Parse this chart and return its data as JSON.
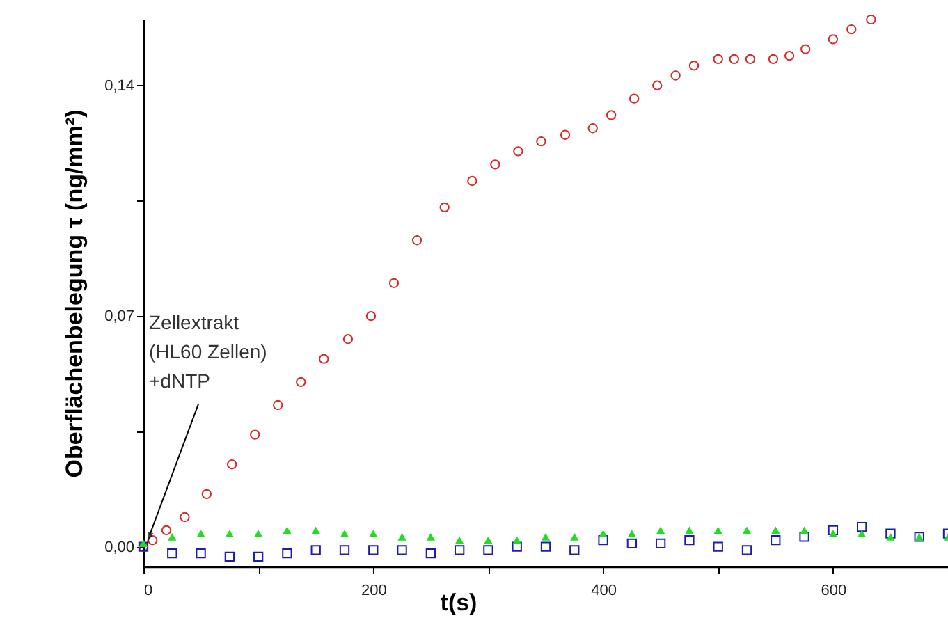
{
  "chart_data": {
    "type": "scatter",
    "xlabel": "t(s)",
    "ylabel": "Oberflächenbelegung τ (ng/mm²)",
    "xlim": [
      0,
      700
    ],
    "xticks": [
      0,
      {
        "value": 100,
        "label": null
      },
      200,
      {
        "value": 300,
        "label": null
      },
      400,
      {
        "value": 500,
        "label": null
      },
      600
    ],
    "ylim": [
      -0.006,
      0.16
    ],
    "yticks": [
      {
        "value": 0,
        "label": "0,00"
      },
      {
        "value": 0.035,
        "label": null
      },
      {
        "value": 0.07,
        "label": "0,07"
      },
      {
        "value": 0.105,
        "label": null
      },
      {
        "value": 0.14,
        "label": "0,14"
      }
    ],
    "grid": false,
    "annotations": [
      {
        "text": "Zellextrakt\n(HL60 Zellen)\n+dNTP",
        "x": 3,
        "y": 0.001
      }
    ],
    "series": [
      {
        "color": "#d42a2a",
        "marker": "circle",
        "x": [
          0,
          8,
          20,
          36,
          55,
          77,
          97,
          117,
          137,
          157,
          178,
          198,
          218,
          238,
          262,
          286,
          306,
          326,
          346,
          367,
          391,
          407,
          427,
          447,
          463,
          479,
          500,
          514,
          528,
          548,
          562,
          576,
          600,
          616,
          633
        ],
        "values": [
          0,
          0.002,
          0.005,
          0.009,
          0.016,
          0.025,
          0.034,
          0.043,
          0.05,
          0.057,
          0.063,
          0.07,
          0.08,
          0.093,
          0.103,
          0.111,
          0.116,
          0.12,
          0.123,
          0.125,
          0.127,
          0.131,
          0.136,
          0.14,
          0.143,
          0.146,
          0.148,
          0.148,
          0.148,
          0.148,
          0.149,
          0.151,
          0.154,
          0.157,
          0.16
        ]
      },
      {
        "color": "#1c1cb4",
        "marker": "square",
        "x": [
          0,
          25,
          50,
          75,
          100,
          125,
          150,
          175,
          200,
          225,
          250,
          275,
          300,
          325,
          350,
          375,
          400,
          425,
          450,
          475,
          500,
          525,
          550,
          575,
          600,
          625,
          650,
          675,
          700
        ],
        "values": [
          0,
          -0.002,
          -0.002,
          -0.003,
          -0.003,
          -0.002,
          -0.001,
          -0.001,
          -0.001,
          -0.001,
          -0.002,
          -0.001,
          -0.001,
          0,
          0,
          -0.001,
          0.002,
          0.001,
          0.001,
          0.002,
          0,
          -0.001,
          0.002,
          0.003,
          0.005,
          0.006,
          0.004,
          0.003,
          0.004
        ]
      },
      {
        "color": "#22dd22",
        "marker": "triangle",
        "x": [
          0,
          25,
          50,
          75,
          100,
          125,
          150,
          175,
          200,
          225,
          250,
          275,
          300,
          325,
          350,
          375,
          400,
          425,
          450,
          475,
          500,
          525,
          550,
          575,
          600,
          625,
          650,
          675,
          700
        ],
        "values": [
          0.001,
          0.003,
          0.004,
          0.004,
          0.004,
          0.005,
          0.005,
          0.004,
          0.004,
          0.003,
          0.003,
          0.002,
          0.002,
          0.002,
          0.003,
          0.003,
          0.004,
          0.004,
          0.005,
          0.005,
          0.005,
          0.005,
          0.005,
          0.005,
          0.004,
          0.004,
          0.003,
          0.003,
          0.003
        ]
      }
    ]
  }
}
